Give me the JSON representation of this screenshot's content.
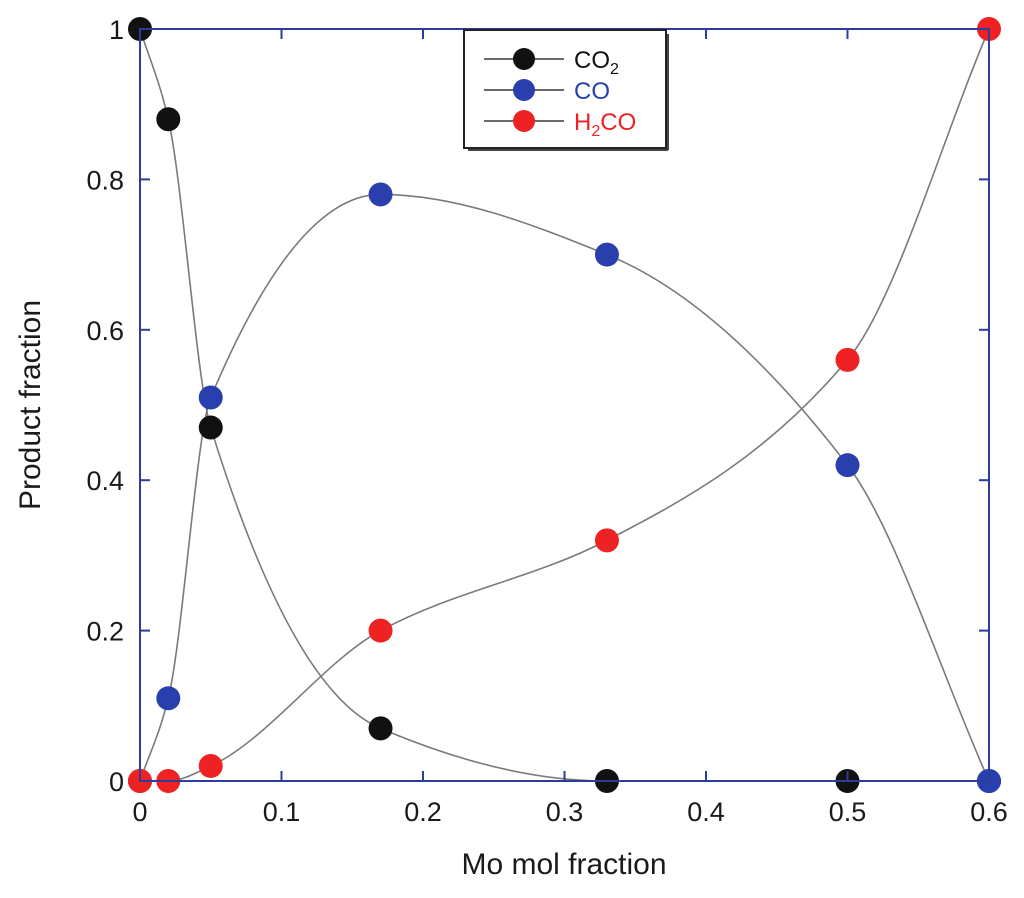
{
  "chart_data": {
    "type": "line",
    "title": "",
    "xlabel": "Mo mol fraction",
    "ylabel": "Product fraction",
    "xlim": [
      0,
      0.6
    ],
    "ylim": [
      0,
      1
    ],
    "xticks": [
      0,
      0.1,
      0.2,
      0.3,
      0.4,
      0.5,
      0.6
    ],
    "xtick_labels": [
      "0",
      "0.1",
      "0.2",
      "0.3",
      "0.4",
      "0.5",
      "0.6"
    ],
    "yticks": [
      0,
      0.2,
      0.4,
      0.6,
      0.8,
      1
    ],
    "ytick_labels": [
      "0",
      "0.2",
      "0.4",
      "0.6",
      "0.8",
      "1"
    ],
    "grid": false,
    "legend_position": "top-center",
    "curve_color": "#7a7a7a",
    "frame_color": "#2b3d9a",
    "series": [
      {
        "name": "CO2",
        "legend_label": {
          "main": "CO",
          "sub": "2",
          "prefix": "",
          "suffix": ""
        },
        "color": "#111111",
        "label_color": "#111111",
        "x": [
          0,
          0.02,
          0.05,
          0.17,
          0.33,
          0.5,
          0.6
        ],
        "y": [
          1,
          0.88,
          0.47,
          0.07,
          0,
          0,
          0
        ]
      },
      {
        "name": "CO",
        "legend_label": {
          "main": "CO",
          "sub": "",
          "prefix": "",
          "suffix": ""
        },
        "color": "#2a3fae",
        "label_color": "#2a3fae",
        "x": [
          0,
          0.02,
          0.05,
          0.17,
          0.33,
          0.5,
          0.6
        ],
        "y": [
          0,
          0.11,
          0.51,
          0.78,
          0.7,
          0.42,
          0
        ]
      },
      {
        "name": "H2CO",
        "legend_label": {
          "prefix": "H",
          "sub": "2",
          "main": "",
          "suffix": "CO"
        },
        "color": "#ee2222",
        "label_color": "#ee2222",
        "x": [
          0,
          0.02,
          0.05,
          0.17,
          0.33,
          0.5,
          0.6
        ],
        "y": [
          0,
          0,
          0.02,
          0.2,
          0.32,
          0.56,
          1
        ]
      }
    ]
  }
}
